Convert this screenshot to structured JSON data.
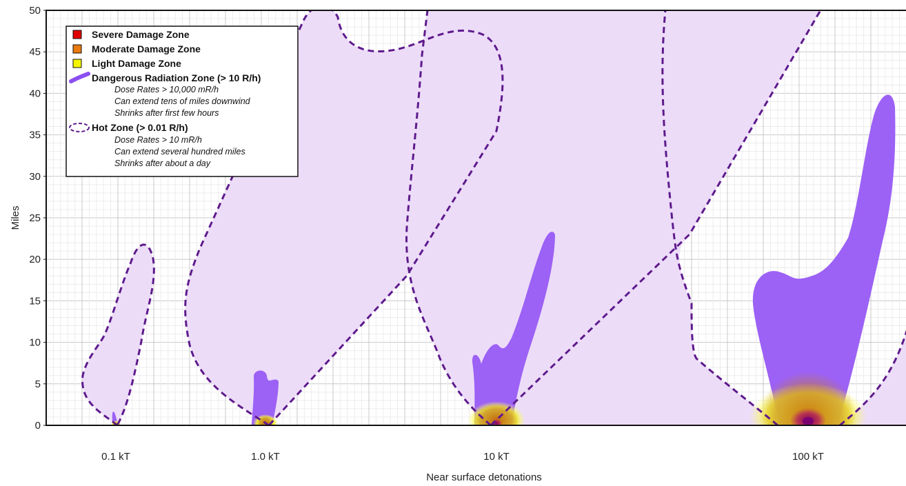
{
  "chart_data": {
    "type": "area",
    "title": "",
    "xlabel": "Near surface detonations",
    "ylabel": "Miles",
    "ylim": [
      0,
      50
    ],
    "y_ticks": [
      0,
      5,
      10,
      15,
      20,
      25,
      30,
      35,
      40,
      45,
      50
    ],
    "grid": true,
    "legend_position": "top-left",
    "categories": [
      "0.1 kT",
      "1.0 kT",
      "10 kT",
      "100 kT"
    ],
    "legend": [
      {
        "key": "severe",
        "label": "Severe Damage Zone",
        "color": "#e00000"
      },
      {
        "key": "moderate",
        "label": "Moderate Damage Zone",
        "color": "#e87a10"
      },
      {
        "key": "light",
        "label": "Light Damage Zone",
        "color": "#f5f500"
      },
      {
        "key": "radiation",
        "label": "Dangerous Radiation Zone (> 10 R/h)",
        "color": "#8b4ff0",
        "notes": [
          "Dose Rates > 10,000 mR/h",
          "Can extend tens of miles downwind",
          "Shrinks after first few hours"
        ]
      },
      {
        "key": "hot",
        "label": "Hot Zone (> 0.01 R/h)",
        "color": "#6a1b9a",
        "notes": [
          "Dose Rates > 10 mR/h",
          "Can extend several hundred miles",
          "Shrinks after about a day"
        ]
      }
    ],
    "series": [
      {
        "name": "Dangerous Radiation Zone (> 10 R/h)",
        "max_miles": [
          1.7,
          6.8,
          23.5,
          40
        ]
      },
      {
        "name": "Hot Zone (> 0.01 R/h)",
        "max_miles": [
          21.5,
          50,
          50,
          50
        ]
      }
    ],
    "colors": {
      "hot_fill": "#d9b8f2",
      "hot_stroke": "#5e1a8c",
      "radiation_fill": "#9a5cf5",
      "grid": "#d0d0d0"
    }
  }
}
